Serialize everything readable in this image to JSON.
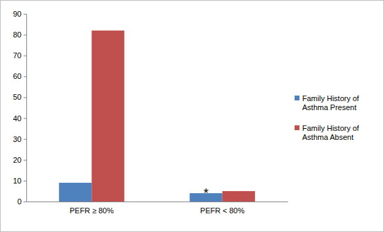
{
  "chart_data": {
    "type": "bar",
    "categories": [
      "PEFR ≥ 80%",
      "PEFR < 80%"
    ],
    "series": [
      {
        "name": "Family History of Asthma Present",
        "color": "#4f81bd",
        "values": [
          9,
          4
        ]
      },
      {
        "name": "Family History of Asthma Absent",
        "color": "#c0504d",
        "values": [
          82,
          5
        ]
      }
    ],
    "ylim": [
      0,
      90
    ],
    "yticks": [
      0,
      10,
      20,
      30,
      40,
      50,
      60,
      70,
      80,
      90
    ],
    "grid": false,
    "legend": "right",
    "annotations": [
      {
        "text": "*",
        "category": "PEFR < 80%",
        "series": "Family History of Asthma Present"
      }
    ]
  }
}
